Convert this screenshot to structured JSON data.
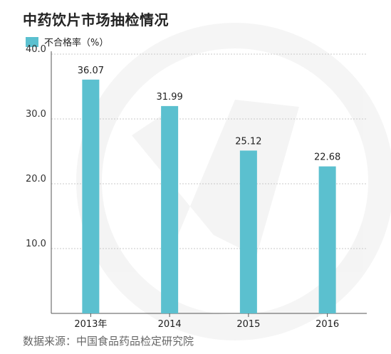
{
  "title": "中药饮片市场抽检情况",
  "legend": {
    "label": "不合格率（%）",
    "color": "#5bc0cf"
  },
  "source": "数据来源：中国食品药品检定研究院",
  "chart_data": {
    "type": "bar",
    "title": "中药饮片市场抽检情况",
    "categories": [
      "2013年",
      "2014",
      "2015",
      "2016"
    ],
    "series": [
      {
        "name": "不合格率（%）",
        "values": [
          36.07,
          31.99,
          25.12,
          22.68
        ]
      }
    ],
    "value_labels": [
      "36.07",
      "31.99",
      "25.12",
      "22.68"
    ],
    "y_ticks": [
      "40.0",
      "30.0",
      "20.0",
      "10.0"
    ],
    "ylim": [
      0,
      40
    ],
    "grid": true,
    "legend_position": "top-left",
    "bar_color": "#5bc0cf"
  }
}
